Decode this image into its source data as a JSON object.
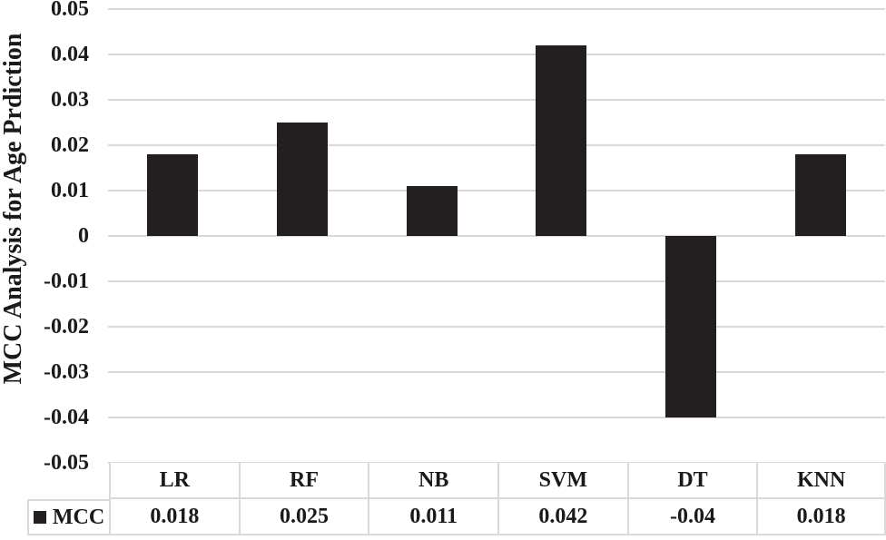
{
  "colors": {
    "bar": "#231f20",
    "gridline": "#d9d9d9",
    "table_border": "#d9d9d9",
    "text": "#1c191a",
    "background": "#ffffff"
  },
  "chart_data": {
    "type": "bar",
    "title": "",
    "xlabel": "",
    "ylabel": "MCC Analysis for Age Prdiction",
    "categories": [
      "LR",
      "RF",
      "NB",
      "SVM",
      "DT",
      "KNN"
    ],
    "series": [
      {
        "name": "MCC",
        "values": [
          0.018,
          0.025,
          0.011,
          0.042,
          -0.04,
          0.018
        ],
        "display_values": [
          "0.018",
          "0.025",
          "0.011",
          "0.042",
          "-0.04",
          "0.018"
        ]
      }
    ],
    "ylim": [
      -0.05,
      0.05
    ],
    "ytick_step": 0.01,
    "ytick_labels": [
      "0.05",
      "0.04",
      "0.03",
      "0.02",
      "0.01",
      "0",
      "-0.01",
      "-0.02",
      "-0.03",
      "-0.04",
      "-0.05"
    ],
    "grid": true,
    "legend_position": "table-row-left",
    "legend_marker": "square"
  }
}
